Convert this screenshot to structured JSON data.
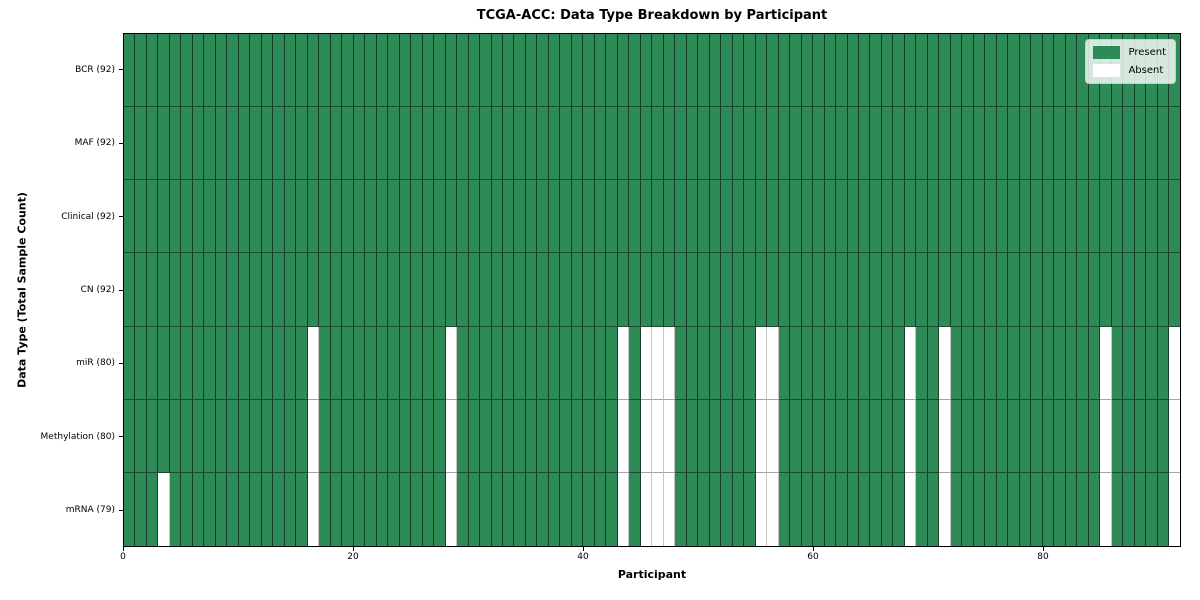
{
  "chart_data": {
    "type": "heatmap",
    "title": "TCGA-ACC: Data Type Breakdown by Participant",
    "xlabel": "Participant",
    "ylabel": "Data Type (Total Sample Count)",
    "n_participants": 92,
    "x_range": [
      0,
      92
    ],
    "x_ticks": [
      0,
      20,
      40,
      60,
      80
    ],
    "grid": true,
    "legend_position": "upper right",
    "legend": [
      {
        "label": "Present",
        "color": "#2e8b57"
      },
      {
        "label": "Absent",
        "color": "#ffffff"
      }
    ],
    "colors": {
      "present": "#2e8b57",
      "absent": "#ffffff"
    },
    "rows": [
      {
        "label": "BCR (92)",
        "data_type": "BCR",
        "present_count": 92,
        "absent_participants": []
      },
      {
        "label": "MAF (92)",
        "data_type": "MAF",
        "present_count": 92,
        "absent_participants": []
      },
      {
        "label": "Clinical (92)",
        "data_type": "Clinical",
        "present_count": 92,
        "absent_participants": []
      },
      {
        "label": "CN (92)",
        "data_type": "CN",
        "present_count": 92,
        "absent_participants": []
      },
      {
        "label": "miR (80)",
        "data_type": "miR",
        "present_count": 80,
        "absent_participants": [
          16,
          28,
          43,
          45,
          46,
          47,
          55,
          56,
          68,
          71,
          85,
          91
        ]
      },
      {
        "label": "Methylation (80)",
        "data_type": "Methylation",
        "present_count": 80,
        "absent_participants": [
          16,
          28,
          43,
          45,
          46,
          47,
          55,
          56,
          68,
          71,
          85,
          91
        ]
      },
      {
        "label": "mRNA (79)",
        "data_type": "mRNA",
        "present_count": 79,
        "absent_participants": [
          3,
          16,
          28,
          43,
          45,
          46,
          47,
          55,
          56,
          68,
          71,
          85,
          91
        ]
      }
    ]
  }
}
